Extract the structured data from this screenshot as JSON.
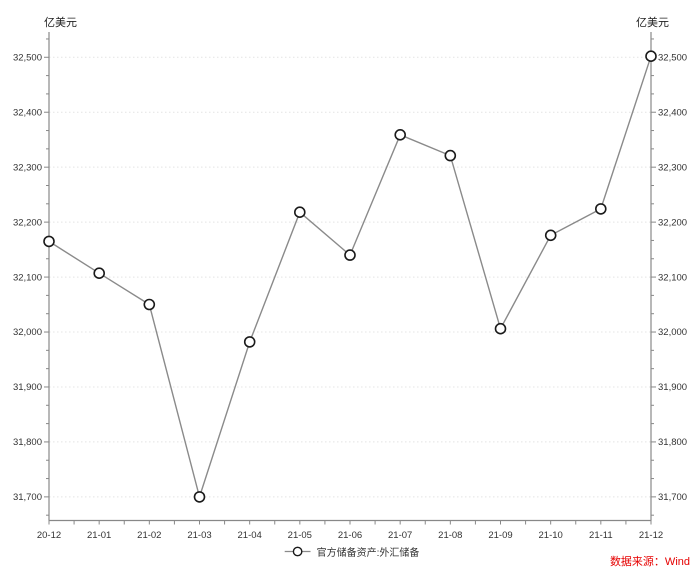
{
  "axis_titles": {
    "left": "亿美元",
    "right": "亿美元"
  },
  "legend": {
    "label": "官方储备资产:外汇储备"
  },
  "source": {
    "label": "数据来源：Wind",
    "color": "#e60000"
  },
  "chart_data": {
    "type": "line",
    "title": "",
    "categories": [
      "20-12",
      "21-01",
      "21-02",
      "21-03",
      "21-04",
      "21-05",
      "21-06",
      "21-07",
      "21-08",
      "21-09",
      "21-10",
      "21-11",
      "21-12"
    ],
    "series": [
      {
        "name": "官方储备资产:外汇储备",
        "values": [
          32165,
          32107,
          32050,
          31700,
          31982,
          32218,
          32140,
          32359,
          32321,
          32006,
          32176,
          32224,
          32502
        ]
      }
    ],
    "ylabel_left": "亿美元",
    "ylabel_right": "亿美元",
    "ylim": [
      31657,
      32546
    ],
    "yticks": [
      31700,
      31800,
      31900,
      32000,
      32100,
      32200,
      32300,
      32400,
      32500
    ],
    "minor_divisions_per_major": 3,
    "grid": "horizontal-dotted",
    "legend_position": "bottom-center",
    "line_color": "#8a8a8a",
    "marker_fill": "#ffffff",
    "marker_stroke": "#1a1a1a",
    "axis_color": "#888888",
    "grid_color": "#e4e4e4",
    "text_color": "#333333"
  }
}
